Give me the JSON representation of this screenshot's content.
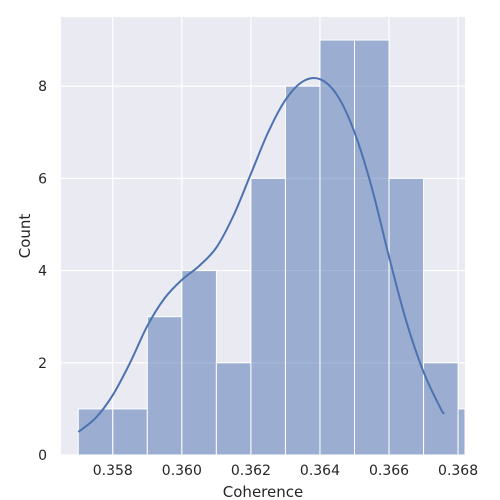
{
  "chart_data": {
    "type": "bar",
    "subtype": "histogram_with_kde",
    "xlabel": "Coherence",
    "ylabel": "Count",
    "xlim": [
      0.3565,
      0.3682
    ],
    "ylim": [
      0,
      9.5
    ],
    "grid": true,
    "xticks": [
      0.358,
      0.36,
      0.362,
      0.364,
      0.366,
      0.368
    ],
    "xtick_labels": [
      "0.358",
      "0.360",
      "0.362",
      "0.364",
      "0.366",
      "0.368"
    ],
    "yticks": [
      0,
      2,
      4,
      6,
      8
    ],
    "ytick_labels": [
      "0",
      "2",
      "4",
      "6",
      "8"
    ],
    "bins": [
      {
        "start": 0.357,
        "end": 0.358,
        "count": 1
      },
      {
        "start": 0.358,
        "end": 0.359,
        "count": 1
      },
      {
        "start": 0.359,
        "end": 0.36,
        "count": 3
      },
      {
        "start": 0.36,
        "end": 0.361,
        "count": 4
      },
      {
        "start": 0.361,
        "end": 0.362,
        "count": 2
      },
      {
        "start": 0.362,
        "end": 0.363,
        "count": 6
      },
      {
        "start": 0.363,
        "end": 0.364,
        "count": 8
      },
      {
        "start": 0.364,
        "end": 0.365,
        "count": 9
      },
      {
        "start": 0.365,
        "end": 0.366,
        "count": 9
      },
      {
        "start": 0.366,
        "end": 0.367,
        "count": 6
      },
      {
        "start": 0.367,
        "end": 0.368,
        "count": 2
      },
      {
        "start": 0.368,
        "end": 0.369,
        "count": 1
      }
    ],
    "kde": {
      "x": [
        0.357,
        0.3575,
        0.358,
        0.3585,
        0.359,
        0.3595,
        0.36,
        0.3605,
        0.361,
        0.3615,
        0.362,
        0.3625,
        0.363,
        0.3635,
        0.364,
        0.3645,
        0.365,
        0.3655,
        0.366,
        0.3665,
        0.367,
        0.3675,
        0.3676
      ],
      "y": [
        0.5,
        0.8,
        1.3,
        2.0,
        2.8,
        3.4,
        3.8,
        4.1,
        4.5,
        5.2,
        6.1,
        7.0,
        7.7,
        8.1,
        8.15,
        7.8,
        7.0,
        5.8,
        4.3,
        2.9,
        1.8,
        1.0,
        0.9
      ]
    },
    "colors": {
      "background": "#eaeaf2",
      "grid": "#ffffff",
      "bar_fill": "#4c72b0",
      "bar_fill_opacity": 0.5,
      "bar_edge": "#ffffff",
      "kde_line": "#4c72b0",
      "text": "#262626"
    }
  }
}
